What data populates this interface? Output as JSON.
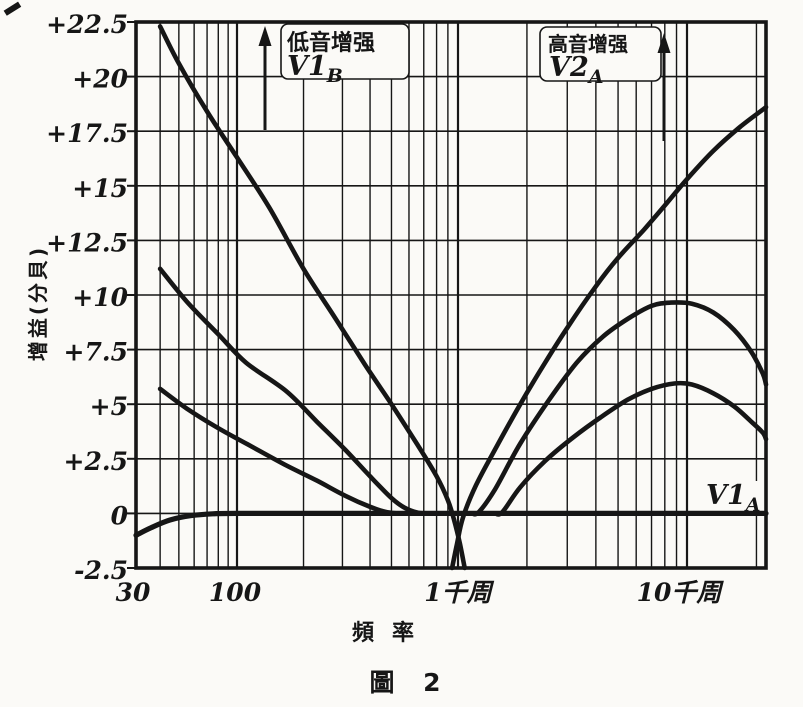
{
  "figure": {
    "caption": "圖 2",
    "x_axis_title": "頻率",
    "y_axis_title": "增益(分貝)"
  },
  "annotations": {
    "bass_boost": {
      "label": "低音增强",
      "tube_prefix": "V1",
      "tube_sub": "B"
    },
    "treble_boost": {
      "label": "高音增强",
      "tube_prefix": "V2",
      "tube_sub": "A"
    },
    "flat_curve": {
      "tube_prefix": "V1",
      "tube_sub": "A"
    }
  },
  "colors": {
    "ink": "#161616",
    "paper": "#fbfaf7"
  },
  "chart_data": {
    "type": "line",
    "title": "圖 2",
    "xlabel": "頻率",
    "ylabel": "增益(分貝)",
    "x_scale": "log",
    "x_range_hz": [
      30,
      22000
    ],
    "ylim": [
      -2.5,
      22.5
    ],
    "grid": "on",
    "legend_position": "none",
    "x_ticks": [
      {
        "f": 30,
        "label": "30"
      },
      {
        "f": 100,
        "label": "100"
      },
      {
        "f": 1000,
        "label": "1千周"
      },
      {
        "f": 10000,
        "label": "10千周"
      }
    ],
    "y_ticks": [
      {
        "v": 22.5,
        "label": "+22.5"
      },
      {
        "v": 20,
        "label": "+20"
      },
      {
        "v": 17.5,
        "label": "+17.5"
      },
      {
        "v": 15,
        "label": "+15"
      },
      {
        "v": 12.5,
        "label": "+12.5"
      },
      {
        "v": 10,
        "label": "+10"
      },
      {
        "v": 7.5,
        "label": "+7.5"
      },
      {
        "v": 5,
        "label": "+5"
      },
      {
        "v": 2.5,
        "label": "+2.5"
      },
      {
        "v": 0,
        "label": "0"
      },
      {
        "v": -2.5,
        "label": "-2.5"
      }
    ],
    "x_gridlines_minor": [
      40,
      50,
      60,
      70,
      80,
      90,
      200,
      300,
      400,
      500,
      600,
      700,
      800,
      900,
      2000,
      3000,
      4000,
      5000,
      6000,
      7000,
      8000,
      9000,
      20000
    ],
    "x_gridlines_major": [
      100,
      1000,
      10000
    ],
    "series": [
      {
        "name": "flat_response_V1A",
        "width": 5.2,
        "points": [
          [
            30,
            -1.0
          ],
          [
            36,
            -0.65
          ],
          [
            45,
            -0.3
          ],
          [
            58,
            -0.1
          ],
          [
            75,
            -0.02
          ],
          [
            100,
            0
          ],
          [
            300,
            0
          ],
          [
            1000,
            0
          ],
          [
            5000,
            0
          ],
          [
            22000,
            0
          ]
        ]
      },
      {
        "name": "bass_boost_max_V1B",
        "width": 4.6,
        "points": [
          [
            40,
            22.3
          ],
          [
            50,
            20.6
          ],
          [
            70,
            18.4
          ],
          [
            100,
            16.3
          ],
          [
            140,
            14.0
          ],
          [
            200,
            11.2
          ],
          [
            280,
            8.9
          ],
          [
            380,
            6.8
          ],
          [
            500,
            5.0
          ],
          [
            650,
            3.2
          ],
          [
            800,
            1.7
          ],
          [
            900,
            0.6
          ],
          [
            960,
            -0.3
          ],
          [
            1020,
            -1.4
          ],
          [
            1070,
            -2.5
          ]
        ]
      },
      {
        "name": "bass_boost_mid",
        "width": 4.6,
        "points": [
          [
            40,
            11.2
          ],
          [
            55,
            9.7
          ],
          [
            80,
            8.2
          ],
          [
            110,
            6.9
          ],
          [
            167,
            5.6
          ],
          [
            230,
            4.2
          ],
          [
            310,
            2.9
          ],
          [
            400,
            1.7
          ],
          [
            500,
            0.7
          ],
          [
            575,
            0.25
          ],
          [
            660,
            0.03
          ],
          [
            750,
            0
          ]
        ]
      },
      {
        "name": "bass_boost_min",
        "width": 4.6,
        "points": [
          [
            40,
            5.7
          ],
          [
            55,
            4.8
          ],
          [
            80,
            3.9
          ],
          [
            110,
            3.2
          ],
          [
            167,
            2.2
          ],
          [
            230,
            1.5
          ],
          [
            310,
            0.8
          ],
          [
            400,
            0.3
          ],
          [
            470,
            0.07
          ],
          [
            530,
            0
          ]
        ]
      },
      {
        "name": "treble_boost_max_V2A",
        "width": 4.6,
        "points": [
          [
            940,
            -2.5
          ],
          [
            990,
            -1.4
          ],
          [
            1050,
            -0.2
          ],
          [
            1200,
            1.3
          ],
          [
            1500,
            3.2
          ],
          [
            1870,
            5.0
          ],
          [
            2400,
            6.9
          ],
          [
            3000,
            8.5
          ],
          [
            4000,
            10.4
          ],
          [
            5000,
            11.7
          ],
          [
            6500,
            13.0
          ],
          [
            8000,
            14.1
          ],
          [
            10000,
            15.3
          ],
          [
            13000,
            16.6
          ],
          [
            17000,
            17.7
          ],
          [
            22000,
            18.6
          ]
        ]
      },
      {
        "name": "treble_boost_mid",
        "width": 4.6,
        "points": [
          [
            1150,
            0
          ],
          [
            1230,
            0.05
          ],
          [
            1450,
            1.1
          ],
          [
            1870,
            3.2
          ],
          [
            2500,
            5.2
          ],
          [
            3300,
            6.9
          ],
          [
            4300,
            8.1
          ],
          [
            5500,
            8.9
          ],
          [
            7000,
            9.5
          ],
          [
            8500,
            9.65
          ],
          [
            10500,
            9.6
          ],
          [
            13000,
            9.2
          ],
          [
            16000,
            8.4
          ],
          [
            19000,
            7.4
          ],
          [
            21300,
            6.4
          ],
          [
            22000,
            5.9
          ]
        ]
      },
      {
        "name": "treble_boost_min",
        "width": 4.6,
        "points": [
          [
            1450,
            0
          ],
          [
            1560,
            0.05
          ],
          [
            1870,
            1.2
          ],
          [
            2400,
            2.4
          ],
          [
            3200,
            3.5
          ],
          [
            4200,
            4.4
          ],
          [
            5500,
            5.2
          ],
          [
            7000,
            5.7
          ],
          [
            8800,
            5.95
          ],
          [
            10500,
            5.9
          ],
          [
            13000,
            5.5
          ],
          [
            16000,
            4.9
          ],
          [
            19000,
            4.2
          ],
          [
            21300,
            3.7
          ],
          [
            22000,
            3.4
          ]
        ]
      }
    ]
  }
}
